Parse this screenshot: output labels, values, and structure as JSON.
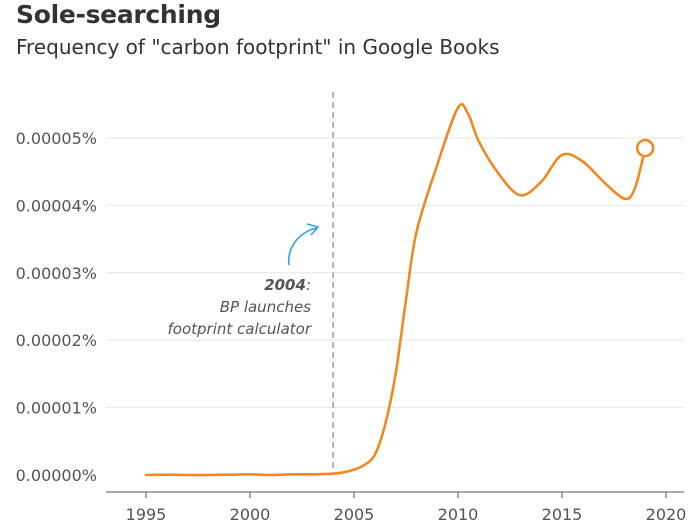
{
  "title": "Sole-searching",
  "subtitle": "Frequency of \"carbon footprint\" in Google Books",
  "colors": {
    "line": "#ee8a23",
    "grid": "#e6e6e6",
    "axis": "#555555",
    "annotation_arrow": "#2fa5db",
    "reference_line": "#a8a8a8"
  },
  "chart_data": {
    "type": "line",
    "title": "Sole-searching",
    "subtitle": "Frequency of \"carbon footprint\" in Google Books",
    "xlabel": "",
    "ylabel": "",
    "xlim": [
      1992,
      2021
    ],
    "ylim": [
      0,
      5e-05
    ],
    "x_ticks": [
      1995,
      2000,
      2005,
      2010,
      2015,
      2020
    ],
    "x_tick_labels": [
      "1995",
      "2000",
      "2005",
      "2010",
      "2015",
      "2020"
    ],
    "y_ticks": [
      0,
      1e-05,
      2e-05,
      3e-05,
      4e-05,
      5e-05
    ],
    "y_tick_labels": [
      "0.00000%",
      "0.00001%",
      "0.00002%",
      "0.00003%",
      "0.00004%",
      "0.00005%"
    ],
    "y_unit": "%",
    "grid": "horizontal",
    "legend": "none",
    "series": [
      {
        "x": [
          1995,
          1996,
          1997,
          1998,
          1999,
          2000,
          2001,
          2002,
          2003,
          2004,
          2004.5,
          2005,
          2005.5,
          2006,
          2006.5,
          2007,
          2007.5,
          2008,
          2009,
          2010,
          2010.5,
          2011,
          2012,
          2013,
          2014,
          2015,
          2016,
          2017,
          2018,
          2018.5,
          2019
        ],
        "values": [
          0.0,
          5e-08,
          0.0,
          0.0,
          5e-08,
          1e-07,
          0.0,
          1e-07,
          1e-07,
          2e-07,
          4e-07,
          8e-07,
          1.5e-06,
          3e-06,
          7.5e-06,
          1.5e-05,
          2.6e-05,
          3.6e-05,
          4.6e-05,
          5.45e-05,
          5.35e-05,
          4.95e-05,
          4.45e-05,
          4.15e-05,
          4.35e-05,
          4.75e-05,
          4.65e-05,
          4.35e-05,
          4.1e-05,
          4.25e-05,
          4.85e-05
        ]
      }
    ],
    "end_marker": {
      "x": 2019,
      "value": 4.85e-05
    },
    "annotation": {
      "x": 2004,
      "year": "2004",
      "colon": ":",
      "line1": "BP launches",
      "line2": "footprint calculator"
    }
  }
}
